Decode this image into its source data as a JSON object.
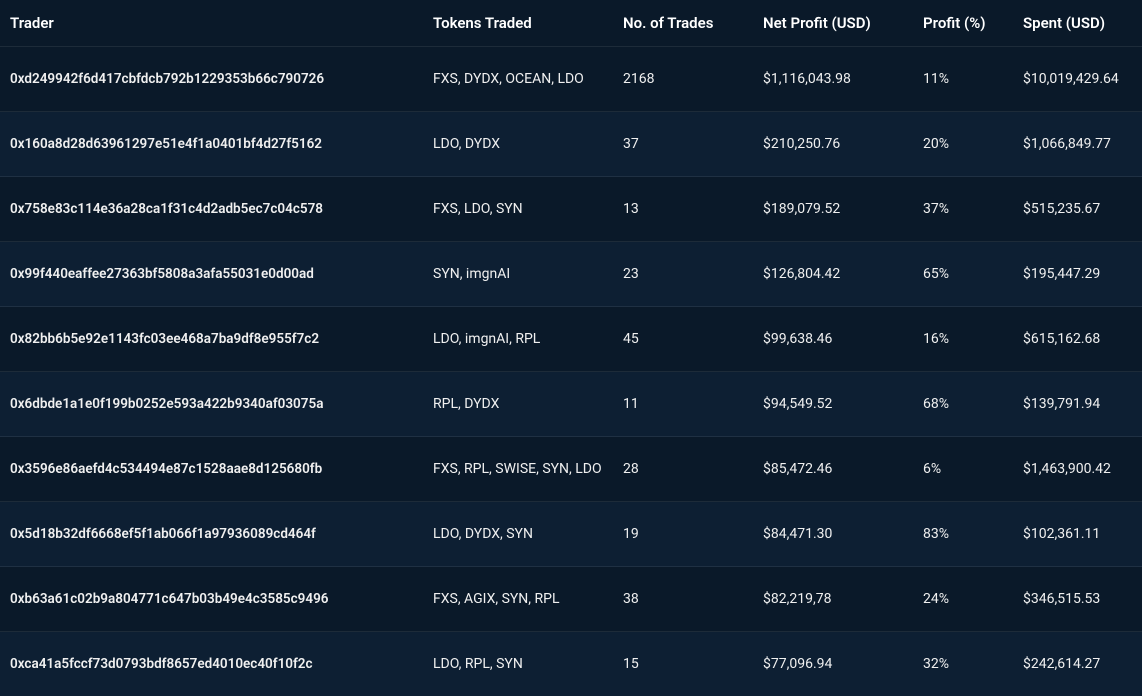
{
  "table": {
    "columns": [
      {
        "key": "trader",
        "label": "Trader"
      },
      {
        "key": "tokens",
        "label": "Tokens Traded"
      },
      {
        "key": "trades",
        "label": "No. of Trades"
      },
      {
        "key": "netProfit",
        "label": "Net Profit (USD)"
      },
      {
        "key": "profitPct",
        "label": "Profit (%)"
      },
      {
        "key": "spent",
        "label": "Spent (USD)"
      }
    ],
    "rows": [
      {
        "trader": "0xd249942f6d417cbfdcb792b1229353b66c790726",
        "tokens": "FXS, DYDX, OCEAN, LDO",
        "trades": "2168",
        "netProfit": "$1,116,043.98",
        "profitPct": "11%",
        "spent": "$10,019,429.64"
      },
      {
        "trader": "0x160a8d28d63961297e51e4f1a0401bf4d27f5162",
        "tokens": "LDO, DYDX",
        "trades": "37",
        "netProfit": "$210,250.76",
        "profitPct": "20%",
        "spent": "$1,066,849.77"
      },
      {
        "trader": "0x758e83c114e36a28ca1f31c4d2adb5ec7c04c578",
        "tokens": "FXS, LDO, SYN",
        "trades": "13",
        "netProfit": "$189,079.52",
        "profitPct": "37%",
        "spent": "$515,235.67"
      },
      {
        "trader": "0x99f440eaffee27363bf5808a3afa55031e0d00ad",
        "tokens": "SYN, imgnAI",
        "trades": "23",
        "netProfit": "$126,804.42",
        "profitPct": "65%",
        "spent": "$195,447.29"
      },
      {
        "trader": "0x82bb6b5e92e1143fc03ee468a7ba9df8e955f7c2",
        "tokens": "LDO, imgnAI, RPL",
        "trades": "45",
        "netProfit": "$99,638.46",
        "profitPct": "16%",
        "spent": "$615,162.68"
      },
      {
        "trader": "0x6dbde1a1e0f199b0252e593a422b9340af03075a",
        "tokens": "RPL, DYDX",
        "trades": "11",
        "netProfit": "$94,549.52",
        "profitPct": "68%",
        "spent": "$139,791.94"
      },
      {
        "trader": "0x3596e86aefd4c534494e87c1528aae8d125680fb",
        "tokens": "FXS, RPL, SWISE, SYN, LDO",
        "trades": "28",
        "netProfit": "$85,472.46",
        "profitPct": "6%",
        "spent": "$1,463,900.42"
      },
      {
        "trader": "0x5d18b32df6668ef5f1ab066f1a97936089cd464f",
        "tokens": "LDO, DYDX, SYN",
        "trades": "19",
        "netProfit": "$84,471.30",
        "profitPct": "83%",
        "spent": "$102,361.11"
      },
      {
        "trader": "0xb63a61c02b9a804771c647b03b49e4c3585c9496",
        "tokens": "FXS, AGIX, SYN, RPL",
        "trades": "38",
        "netProfit": "$82,219,78",
        "profitPct": "24%",
        "spent": "$346,515.53"
      },
      {
        "trader": "0xca41a5fccf73d0793bdf8657ed4010ec40f10f2c",
        "tokens": "LDO, RPL, SYN",
        "trades": "15",
        "netProfit": "$77,096.94",
        "profitPct": "32%",
        "spent": "$242,614.27"
      }
    ],
    "colors": {
      "background_dark": "#0a1929",
      "background_alt": "#0d1f33",
      "text": "#ffffff",
      "border": "rgba(255,255,255,0.08)"
    }
  }
}
